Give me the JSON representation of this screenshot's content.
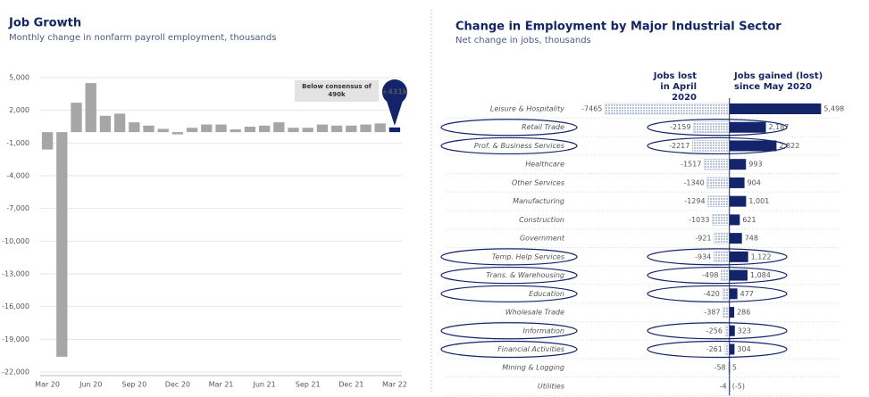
{
  "chart_data": [
    {
      "type": "bar",
      "title": "Job Growth",
      "subtitle": "Monthly change in nonfarm payroll employment, thousands",
      "categories": [
        "Mar 20",
        null,
        null,
        "Jun 20",
        null,
        null,
        "Sep 20",
        null,
        null,
        "Dec 20",
        null,
        null,
        "Mar 21",
        null,
        null,
        "Jun 21",
        null,
        null,
        "Sep 21",
        null,
        null,
        "Dec 21",
        null,
        null,
        "Mar 22"
      ],
      "values": [
        -1600,
        -20600,
        2700,
        4500,
        1500,
        1700,
        900,
        600,
        300,
        -200,
        400,
        700,
        700,
        250,
        500,
        600,
        900,
        400,
        400,
        700,
        600,
        600,
        700,
        800,
        431
      ],
      "value_labels": [
        null,
        null,
        null,
        null,
        null,
        null,
        null,
        null,
        null,
        null,
        null,
        null,
        null,
        null,
        null,
        null,
        null,
        null,
        null,
        null,
        null,
        null,
        null,
        null,
        "+431k"
      ],
      "colors": [
        "#a6a6a6",
        "#a6a6a6",
        "#a6a6a6",
        "#a6a6a6",
        "#a6a6a6",
        "#a6a6a6",
        "#a6a6a6",
        "#a6a6a6",
        "#a6a6a6",
        "#a6a6a6",
        "#a6a6a6",
        "#a6a6a6",
        "#a6a6a6",
        "#a6a6a6",
        "#a6a6a6",
        "#a6a6a6",
        "#a6a6a6",
        "#a6a6a6",
        "#a6a6a6",
        "#a6a6a6",
        "#a6a6a6",
        "#a6a6a6",
        "#a6a6a6",
        "#a6a6a6",
        "#14246b"
      ],
      "annotation": "Below consensus of 490k",
      "ylim": [
        -22000,
        5000
      ],
      "yticks": [
        {
          "value": 5000,
          "label": "5,000"
        },
        {
          "value": 2000,
          "label": "2,000"
        },
        {
          "value": -1000,
          "label": "-1,000"
        },
        {
          "value": -4000,
          "label": "-4,000"
        },
        {
          "value": -7000,
          "label": "-7,000"
        },
        {
          "value": -10000,
          "label": "-10,000"
        },
        {
          "value": -13000,
          "label": "-13,000"
        },
        {
          "value": -16000,
          "label": "-16,000"
        },
        {
          "value": -19000,
          "label": "-19,000"
        },
        {
          "value": -22000,
          "label": "-22,000"
        }
      ],
      "grid": true
    },
    {
      "type": "barh",
      "title": "Change in Employment by Major Industrial Sector",
      "subtitle": "Net change in jobs, thousands",
      "categories": [
        "Leisure & Hospitality",
        "Retail Trade",
        "Prof. & Business Services",
        "Healthcare",
        "Other Services",
        "Manufacturing",
        "Construction",
        "Government",
        "Temp. Help Services",
        "Trans. & Warehousing",
        "Education",
        "Wholesale Trade",
        "Information",
        "Financial Activities",
        "Mining & Logging",
        "Utilities"
      ],
      "highlighted": [
        false,
        true,
        true,
        false,
        false,
        false,
        false,
        false,
        true,
        true,
        true,
        false,
        true,
        true,
        false,
        false
      ],
      "series": [
        {
          "name": "Jobs lost in April 2020",
          "color": "#b7c3dc",
          "values": [
            -7465,
            -2159,
            -2217,
            -1517,
            -1340,
            -1294,
            -1033,
            -921,
            -934,
            -498,
            -420,
            -387,
            -256,
            -261,
            -58,
            -4
          ]
        },
        {
          "name": "Jobs gained (lost) since May 2020",
          "color": "#14246b",
          "values": [
            5498,
            2187,
            2822,
            993,
            904,
            1001,
            621,
            748,
            1122,
            1084,
            477,
            286,
            323,
            304,
            5,
            -5
          ],
          "value_labels": [
            "5,498",
            "2,187",
            "2,822",
            "993",
            "904",
            "1,001",
            "621",
            "748",
            "1,122",
            "1,084",
            "477",
            "286",
            "323",
            "304",
            "5",
            "(-5)"
          ]
        }
      ],
      "xlim": [
        -7700,
        5800
      ]
    }
  ]
}
